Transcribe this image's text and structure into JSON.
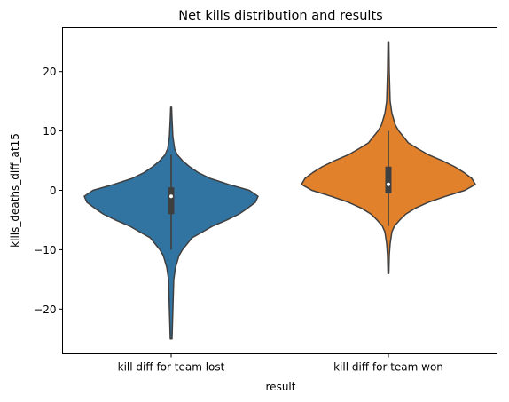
{
  "chart_data": {
    "type": "violin",
    "title": "Net kills distribution and results",
    "xlabel": "result",
    "ylabel": "kills_deaths_diff_at15",
    "categories": [
      "kill diff for team lost",
      "kill diff for team won"
    ],
    "ylim": [
      -27.5,
      27.5
    ],
    "yticks": [
      -20,
      -10,
      0,
      10,
      20
    ],
    "ytick_labels": [
      "−20",
      "−10",
      "0",
      "10",
      "20"
    ],
    "grid": false,
    "series": [
      {
        "color": "#3274a1",
        "min": -25,
        "q1": -4,
        "median": -1,
        "q3": 0.5,
        "max": 14,
        "whisker_low": -10,
        "whisker_high": 6,
        "density": [
          [
            -25,
            0.01
          ],
          [
            -20,
            0.02
          ],
          [
            -15,
            0.03
          ],
          [
            -13,
            0.05
          ],
          [
            -11,
            0.09
          ],
          [
            -10,
            0.13
          ],
          [
            -8,
            0.24
          ],
          [
            -7,
            0.36
          ],
          [
            -6,
            0.48
          ],
          [
            -5,
            0.64
          ],
          [
            -4,
            0.78
          ],
          [
            -3,
            0.88
          ],
          [
            -2,
            0.97
          ],
          [
            -1,
            1.0
          ],
          [
            0,
            0.9
          ],
          [
            1,
            0.66
          ],
          [
            2,
            0.45
          ],
          [
            3,
            0.31
          ],
          [
            4,
            0.21
          ],
          [
            5,
            0.13
          ],
          [
            6,
            0.07
          ],
          [
            7,
            0.04
          ],
          [
            9,
            0.02
          ],
          [
            12,
            0.01
          ],
          [
            14,
            0.005
          ]
        ]
      },
      {
        "color": "#e1812c",
        "min": -14,
        "q1": -0.5,
        "median": 1,
        "q3": 4,
        "max": 25,
        "whisker_low": -6,
        "whisker_high": 10,
        "density": [
          [
            -14,
            0.005
          ],
          [
            -11,
            0.01
          ],
          [
            -9,
            0.02
          ],
          [
            -7,
            0.04
          ],
          [
            -6,
            0.07
          ],
          [
            -5,
            0.13
          ],
          [
            -4,
            0.2
          ],
          [
            -3,
            0.31
          ],
          [
            -2,
            0.46
          ],
          [
            -1,
            0.66
          ],
          [
            0,
            0.88
          ],
          [
            1,
            1.0
          ],
          [
            2,
            0.96
          ],
          [
            3,
            0.87
          ],
          [
            4,
            0.76
          ],
          [
            5,
            0.62
          ],
          [
            6,
            0.46
          ],
          [
            7,
            0.34
          ],
          [
            8,
            0.23
          ],
          [
            10,
            0.12
          ],
          [
            11,
            0.08
          ],
          [
            13,
            0.04
          ],
          [
            15,
            0.02
          ],
          [
            20,
            0.01
          ],
          [
            25,
            0.005
          ]
        ]
      }
    ]
  }
}
